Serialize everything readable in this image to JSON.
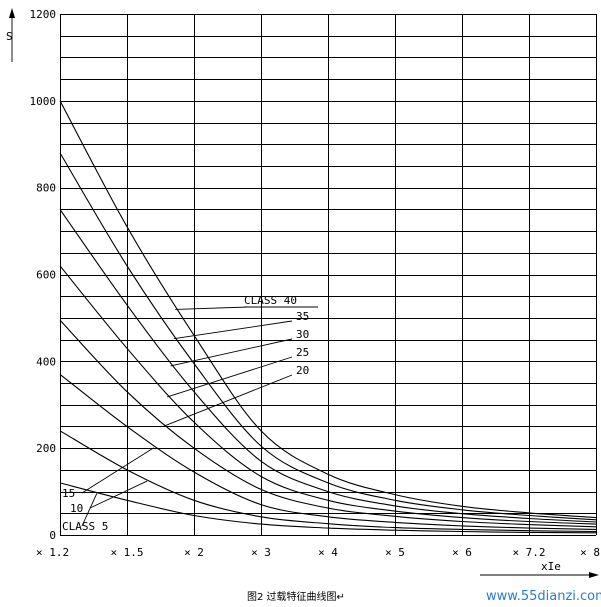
{
  "chart_data": {
    "type": "line",
    "title": "",
    "ylabel": "S",
    "xlabel": "xIe",
    "ylim": [
      0,
      1200
    ],
    "y_ticks": [
      {
        "value": 0,
        "label": "0"
      },
      {
        "value": 200,
        "label": "200"
      },
      {
        "value": 400,
        "label": "400"
      },
      {
        "value": 600,
        "label": "600"
      },
      {
        "value": 800,
        "label": "800"
      },
      {
        "value": 1000,
        "label": "1000"
      },
      {
        "value": 1200,
        "label": "1200"
      }
    ],
    "x_ticks": [
      "× 1.2",
      "× 1.5",
      "× 2",
      "× 3",
      "× 4",
      "× 5",
      "× 6",
      "× 7.2",
      "× 8"
    ],
    "y_gridlines": [
      0,
      50,
      100,
      150,
      200,
      250,
      300,
      350,
      400,
      450,
      500,
      550,
      600,
      650,
      700,
      750,
      800,
      850,
      900,
      950,
      1000,
      1050,
      1100,
      1150,
      1200
    ],
    "series": [
      {
        "name": "CLASS 5",
        "values": [
          120,
          80,
          45,
          25,
          16,
          11,
          8,
          6,
          5
        ]
      },
      {
        "name": "10",
        "values": [
          240,
          150,
          80,
          42,
          26,
          17,
          13,
          10,
          8
        ]
      },
      {
        "name": "15",
        "values": [
          370,
          250,
          145,
          70,
          42,
          29,
          21,
          16,
          13
        ]
      },
      {
        "name": "20",
        "values": [
          495,
          330,
          200,
          105,
          62,
          43,
          31,
          24,
          19
        ]
      },
      {
        "name": "25",
        "values": [
          620,
          430,
          260,
          135,
          80,
          55,
          40,
          31,
          25
        ]
      },
      {
        "name": "30",
        "values": [
          750,
          530,
          330,
          170,
          100,
          67,
          49,
          38,
          30
        ]
      },
      {
        "name": "35",
        "values": [
          880,
          620,
          395,
          205,
          120,
          80,
          58,
          45,
          35
        ]
      },
      {
        "name": "CLASS 40",
        "values": [
          1000,
          710,
          460,
          240,
          140,
          93,
          66,
          51,
          40
        ]
      }
    ]
  },
  "caption": "图2 过载特征曲线图↵",
  "watermark": "www.55dianzi.com"
}
